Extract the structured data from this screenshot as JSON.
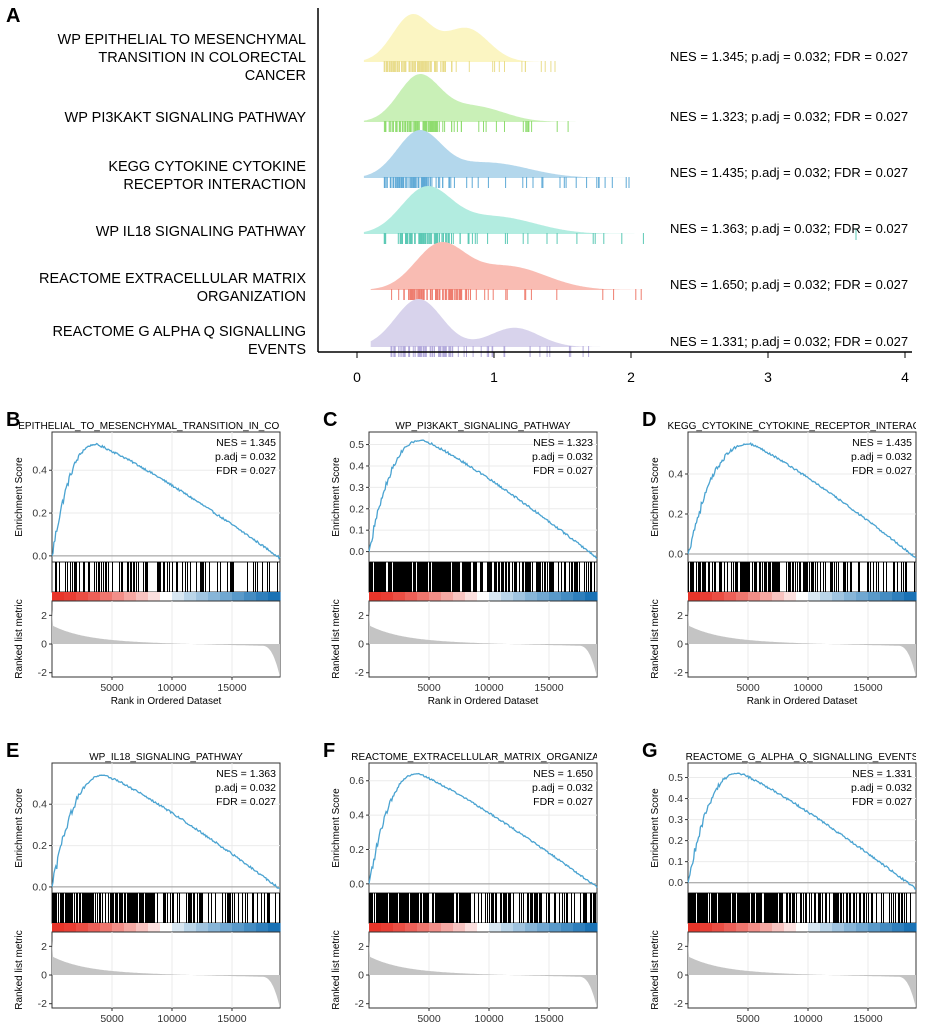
{
  "colors": {
    "ridge_fills": [
      "#fbf5c2",
      "#c9f0b7",
      "#b3d7ec",
      "#b2ece0",
      "#f9bcb3",
      "#d8d3ec"
    ],
    "ridge_ticks": [
      "#e9dd8d",
      "#8fdc6f",
      "#5ea9d6",
      "#5cc9b5",
      "#ee7d6f",
      "#b4abdc"
    ],
    "curve": "#4aa3d1",
    "bar_red": "#e8352a",
    "bar_blue": "#1a72b5",
    "metric_fill": "#c4c4c4"
  },
  "panel_a": {
    "label": "A",
    "x_ticks": [
      "0",
      "1",
      "2",
      "3",
      "4"
    ],
    "pathways": [
      {
        "label_lines": [
          "WP EPITHELIAL TO MESENCHYMAL",
          "TRANSITION IN COLORECTAL",
          "CANCER"
        ],
        "stats": "NES = 1.345; p.adj = 0.032; FDR = 0.027"
      },
      {
        "label_lines": [
          "WP PI3KAKT SIGNALING PATHWAY"
        ],
        "stats": "NES = 1.323; p.adj = 0.032; FDR = 0.027"
      },
      {
        "label_lines": [
          "KEGG CYTOKINE CYTOKINE",
          "RECEPTOR INTERACTION"
        ],
        "stats": "NES = 1.435; p.adj = 0.032; FDR = 0.027"
      },
      {
        "label_lines": [
          "WP IL18 SIGNALING PATHWAY"
        ],
        "stats": "NES = 1.363; p.adj = 0.032; FDR = 0.027"
      },
      {
        "label_lines": [
          "REACTOME EXTRACELLULAR MATRIX",
          "ORGANIZATION"
        ],
        "stats": "NES = 1.650; p.adj = 0.032; FDR = 0.027"
      },
      {
        "label_lines": [
          "REACTOME G ALPHA Q SIGNALLING",
          "EVENTS"
        ],
        "stats": "NES = 1.331; p.adj = 0.032; FDR = 0.027"
      }
    ]
  },
  "gsea_common": {
    "es_axis_label": "Enrichment Score",
    "metric_axis_label": "Ranked list metric",
    "x_axis_label": "Rank in Ordered Dataset",
    "x_ticks": [
      "5000",
      "10000",
      "15000"
    ],
    "metric_ticks": [
      "2",
      "0",
      "-2"
    ]
  },
  "panels": [
    {
      "label": "B",
      "title": "EPITHELIAL_TO_MESENCHYMAL_TRANSITION_IN_COLOREC",
      "nes": "NES = 1.345",
      "padj": "p.adj = 0.032",
      "fdr": "FDR = 0.027",
      "es_ticks": [
        "0.4",
        "0.2",
        "0.0"
      ]
    },
    {
      "label": "C",
      "title": "WP_PI3KAKT_SIGNALING_PATHWAY",
      "nes": "NES = 1.323",
      "padj": "p.adj = 0.032",
      "fdr": "FDR = 0.027",
      "es_ticks": [
        "0.5",
        "0.4",
        "0.3",
        "0.2",
        "0.1",
        "0.0"
      ]
    },
    {
      "label": "D",
      "title": "KEGG_CYTOKINE_CYTOKINE_RECEPTOR_INTERACTIO",
      "nes": "NES = 1.435",
      "padj": "p.adj = 0.032",
      "fdr": "FDR = 0.027",
      "es_ticks": [
        "0.4",
        "0.2",
        "0.0"
      ]
    },
    {
      "label": "E",
      "title": "WP_IL18_SIGNALING_PATHWAY",
      "nes": "NES = 1.363",
      "padj": "p.adj = 0.032",
      "fdr": "FDR = 0.027",
      "es_ticks": [
        "0.4",
        "0.2",
        "0.0"
      ]
    },
    {
      "label": "F",
      "title": "REACTOME_EXTRACELLULAR_MATRIX_ORGANIZATIO",
      "nes": "NES = 1.650",
      "padj": "p.adj = 0.032",
      "fdr": "FDR = 0.027",
      "es_ticks": [
        "0.6",
        "0.4",
        "0.2",
        "0.0"
      ]
    },
    {
      "label": "G",
      "title": "REACTOME_G_ALPHA_Q_SIGNALLING_EVENTS",
      "nes": "NES = 1.331",
      "padj": "p.adj = 0.032",
      "fdr": "FDR = 0.027",
      "es_ticks": [
        "0.5",
        "0.4",
        "0.3",
        "0.2",
        "0.1",
        "0.0"
      ]
    }
  ],
  "chart_data": [
    {
      "type": "area",
      "subtype": "ridgeline",
      "panel": "A",
      "xlim": [
        0,
        4
      ],
      "x_ticks": [
        0,
        1,
        2,
        3,
        4
      ],
      "series": [
        {
          "name": "WP EPITHELIAL TO MESENCHYMAL TRANSITION IN COLORECTAL CANCER",
          "nes": 1.345,
          "padj": 0.032,
          "fdr": 0.027,
          "range": [
            0.2,
            1.45
          ],
          "peaks": [
            [
              0.4,
              1.0,
              0.14
            ],
            [
              0.8,
              0.72,
              0.16
            ]
          ]
        },
        {
          "name": "WP PI3KAKT SIGNALING PATHWAY",
          "nes": 1.323,
          "padj": 0.032,
          "fdr": 0.027,
          "range": [
            0.2,
            1.6
          ],
          "peaks": [
            [
              0.45,
              1.0,
              0.15
            ],
            [
              0.85,
              0.35,
              0.22
            ]
          ]
        },
        {
          "name": "KEGG CYTOKINE CYTOKINE RECEPTOR INTERACTION",
          "nes": 1.435,
          "padj": 0.032,
          "fdr": 0.027,
          "range": [
            0.2,
            2.0
          ],
          "peaks": [
            [
              0.45,
              1.0,
              0.16
            ],
            [
              0.95,
              0.35,
              0.3
            ]
          ]
        },
        {
          "name": "WP IL18 SIGNALING PATHWAY",
          "nes": 1.363,
          "padj": 0.032,
          "fdr": 0.027,
          "range": [
            0.2,
            2.1
          ],
          "peaks": [
            [
              0.5,
              1.0,
              0.18
            ],
            [
              1.0,
              0.4,
              0.3
            ]
          ]
        },
        {
          "name": "REACTOME EXTRACELLULAR MATRIX ORGANIZATION",
          "nes": 1.65,
          "padj": 0.032,
          "fdr": 0.027,
          "range": [
            0.25,
            2.1
          ],
          "peaks": [
            [
              0.6,
              1.0,
              0.18
            ],
            [
              1.1,
              0.55,
              0.28
            ]
          ]
        },
        {
          "name": "REACTOME G ALPHA Q SIGNALLING EVENTS",
          "nes": 1.331,
          "padj": 0.032,
          "fdr": 0.027,
          "range": [
            0.25,
            2.0
          ],
          "peaks": [
            [
              0.45,
              1.0,
              0.17
            ],
            [
              1.15,
              0.4,
              0.18
            ]
          ]
        }
      ]
    },
    {
      "type": "line",
      "subtype": "gsea",
      "x_range": [
        0,
        19000
      ],
      "x_ticks": [
        5000,
        10000,
        15000
      ],
      "metric_range": [
        -2.3,
        3.0
      ],
      "series": [
        {
          "panel": "B",
          "name": "EPITHELIAL_TO_MESENCHYMAL_TRANSITION_IN_COLOREC",
          "ylim": [
            -0.01,
            0.56
          ],
          "y_ticks": [
            0.0,
            0.2,
            0.4
          ],
          "peak_rank": 3700,
          "peak_es": 0.52,
          "end_es": -0.01,
          "gene_density": 0.45
        },
        {
          "panel": "C",
          "name": "WP_PI3KAKT_SIGNALING_PATHWAY",
          "ylim": [
            -0.03,
            0.54
          ],
          "y_ticks": [
            0.0,
            0.1,
            0.2,
            0.3,
            0.4,
            0.5
          ],
          "peak_rank": 4500,
          "peak_es": 0.52,
          "end_es": -0.03,
          "gene_density": 0.85
        },
        {
          "panel": "D",
          "name": "KEGG_CYTOKINE_CYTOKINE_RECEPTOR_INTERACTIO",
          "ylim": [
            -0.02,
            0.59
          ],
          "y_ticks": [
            0.0,
            0.2,
            0.4
          ],
          "peak_rank": 5200,
          "peak_es": 0.55,
          "end_es": -0.02,
          "gene_density": 0.7
        },
        {
          "panel": "E",
          "name": "WP_IL18_SIGNALING_PATHWAY",
          "ylim": [
            -0.01,
            0.58
          ],
          "y_ticks": [
            0.0,
            0.2,
            0.4
          ],
          "peak_rank": 4400,
          "peak_es": 0.54,
          "end_es": -0.01,
          "gene_density": 0.75
        },
        {
          "panel": "F",
          "name": "REACTOME_EXTRACELLULAR_MATRIX_ORGANIZATIO",
          "ylim": [
            -0.03,
            0.68
          ],
          "y_ticks": [
            0.0,
            0.2,
            0.4,
            0.6
          ],
          "peak_rank": 4100,
          "peak_es": 0.64,
          "end_es": -0.02,
          "gene_density": 0.8
        },
        {
          "panel": "G",
          "name": "REACTOME_G_ALPHA_Q_SIGNALLING_EVENTS",
          "ylim": [
            -0.03,
            0.55
          ],
          "y_ticks": [
            0.0,
            0.1,
            0.2,
            0.3,
            0.4,
            0.5
          ],
          "peak_rank": 4300,
          "peak_es": 0.52,
          "end_es": -0.03,
          "gene_density": 0.85
        }
      ]
    }
  ]
}
